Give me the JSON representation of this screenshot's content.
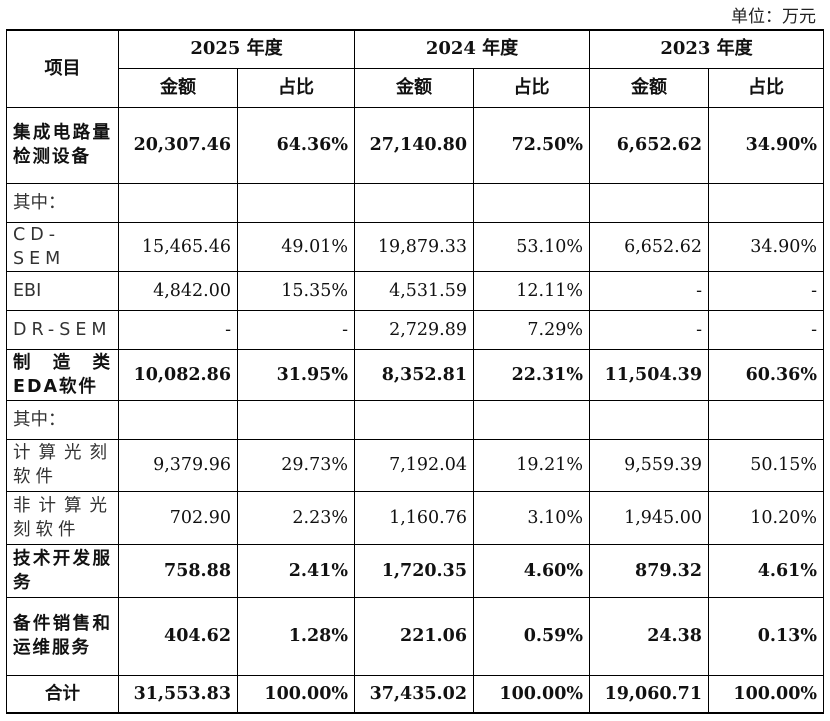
{
  "unit_label": "单位：万元",
  "header": {
    "item_col": "项目",
    "years": [
      "2025 年度",
      "2024 年度",
      "2023 年度"
    ],
    "amount": "金额",
    "ratio": "占比"
  },
  "rows": [
    {
      "label": "集成电路量检测设备",
      "bold": true,
      "values": [
        "20,307.46",
        "64.36%",
        "27,140.80",
        "72.50%",
        "6,652.62",
        "34.90%"
      ]
    },
    {
      "label": "其中：",
      "bold": false,
      "values": [
        "",
        "",
        "",
        "",
        "",
        ""
      ]
    },
    {
      "label": "CD-SEM",
      "bold": false,
      "values": [
        "15,465.46",
        "49.01%",
        "19,879.33",
        "53.10%",
        "6,652.62",
        "34.90%"
      ]
    },
    {
      "label": "EBI",
      "bold": false,
      "values": [
        "4,842.00",
        "15.35%",
        "4,531.59",
        "12.11%",
        "-",
        "-"
      ]
    },
    {
      "label": "DR-SEM",
      "bold": false,
      "values": [
        "-",
        "-",
        "2,729.89",
        "7.29%",
        "-",
        "-"
      ]
    },
    {
      "label": "制造类EDA软件",
      "bold": true,
      "values": [
        "10,082.86",
        "31.95%",
        "8,352.81",
        "22.31%",
        "11,504.39",
        "60.36%"
      ]
    },
    {
      "label": "其中：",
      "bold": false,
      "values": [
        "",
        "",
        "",
        "",
        "",
        ""
      ]
    },
    {
      "label": "计算光刻软件",
      "bold": false,
      "values": [
        "9,379.96",
        "29.73%",
        "7,192.04",
        "19.21%",
        "9,559.39",
        "50.15%"
      ]
    },
    {
      "label": "非计算光刻软件",
      "bold": false,
      "values": [
        "702.90",
        "2.23%",
        "1,160.76",
        "3.10%",
        "1,945.00",
        "10.20%"
      ]
    },
    {
      "label": "技术开发服务",
      "bold": true,
      "values": [
        "758.88",
        "2.41%",
        "1,720.35",
        "4.60%",
        "879.32",
        "4.61%"
      ]
    },
    {
      "label": "备件销售和运维服务",
      "bold": true,
      "values": [
        "404.62",
        "1.28%",
        "221.06",
        "0.59%",
        "24.38",
        "0.13%"
      ]
    },
    {
      "label": "合计",
      "bold": true,
      "total": true,
      "values": [
        "31,553.83",
        "100.00%",
        "37,435.02",
        "100.00%",
        "19,060.71",
        "100.00%"
      ]
    }
  ]
}
